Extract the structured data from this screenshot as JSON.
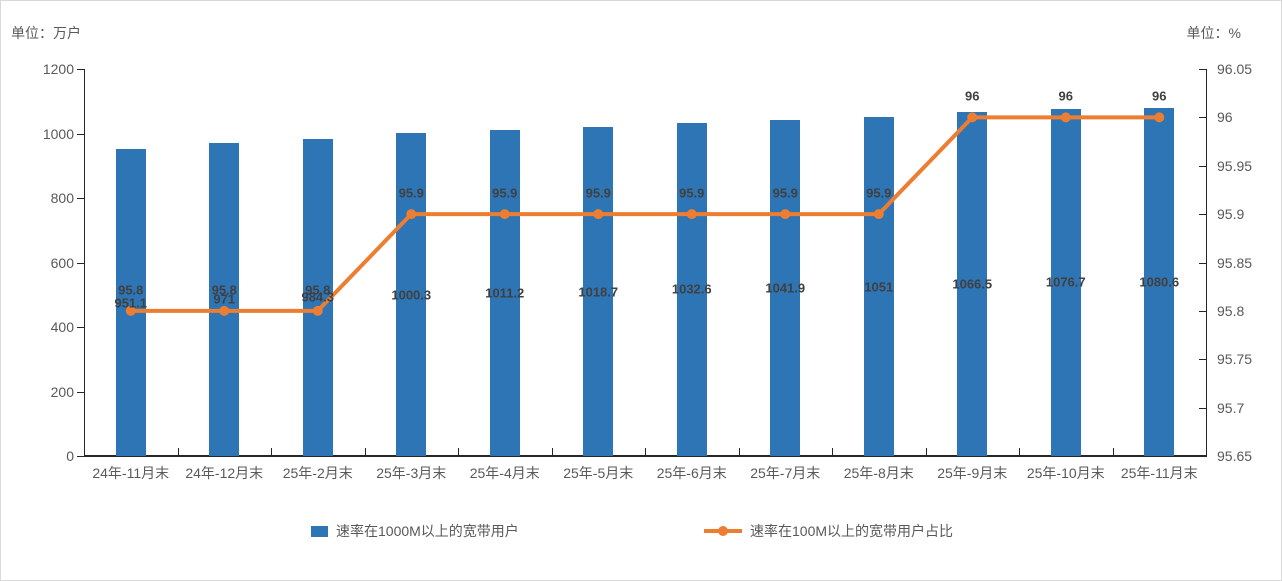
{
  "units": {
    "left": "单位：万户",
    "right": "单位：%"
  },
  "chart_data": {
    "type": "bar",
    "title": "",
    "categories": [
      "24年-11月末",
      "24年-12月末",
      "25年-2月末",
      "25年-3月末",
      "25年-4月末",
      "25年-5月末",
      "25年-6月末",
      "25年-7月末",
      "25年-8月末",
      "25年-9月末",
      "25年-10月末",
      "25年-11月末"
    ],
    "series": [
      {
        "name": "速率在1000M以上的宽带用户",
        "type": "bar",
        "axis": "left",
        "color": "#2E75B6",
        "values": [
          951.1,
          971,
          984.3,
          1000.3,
          1011.2,
          1018.7,
          1032.6,
          1041.9,
          1051,
          1066.5,
          1076.7,
          1080.6
        ],
        "labels": [
          "951.1",
          "971",
          "984.3",
          "1000.3",
          "1011.2",
          "1018.7",
          "1032.6",
          "1041.9",
          "1051",
          "1066.5",
          "1076.7",
          "1080.6"
        ]
      },
      {
        "name": "速率在100M以上的宽带用户占比",
        "type": "line",
        "axis": "right",
        "color": "#ED7D31",
        "values": [
          95.8,
          95.8,
          95.8,
          95.9,
          95.9,
          95.9,
          95.9,
          95.9,
          95.9,
          96,
          96,
          96
        ],
        "labels": [
          "95.8",
          "95.8",
          "95.8",
          "95.9",
          "95.9",
          "95.9",
          "95.9",
          "95.9",
          "95.9",
          "96",
          "96",
          "96"
        ]
      }
    ],
    "left_axis": {
      "label": "单位：万户",
      "min": 0,
      "max": 1200,
      "ticks": [
        "0",
        "200",
        "400",
        "600",
        "800",
        "1000",
        "1200"
      ]
    },
    "right_axis": {
      "label": "单位：%",
      "min": 95.65,
      "max": 96.05,
      "ticks": [
        "95.65",
        "95.7",
        "95.75",
        "95.8",
        "95.85",
        "95.9",
        "95.95",
        "96",
        "96.05"
      ]
    },
    "grid": false,
    "legend_position": "bottom"
  }
}
